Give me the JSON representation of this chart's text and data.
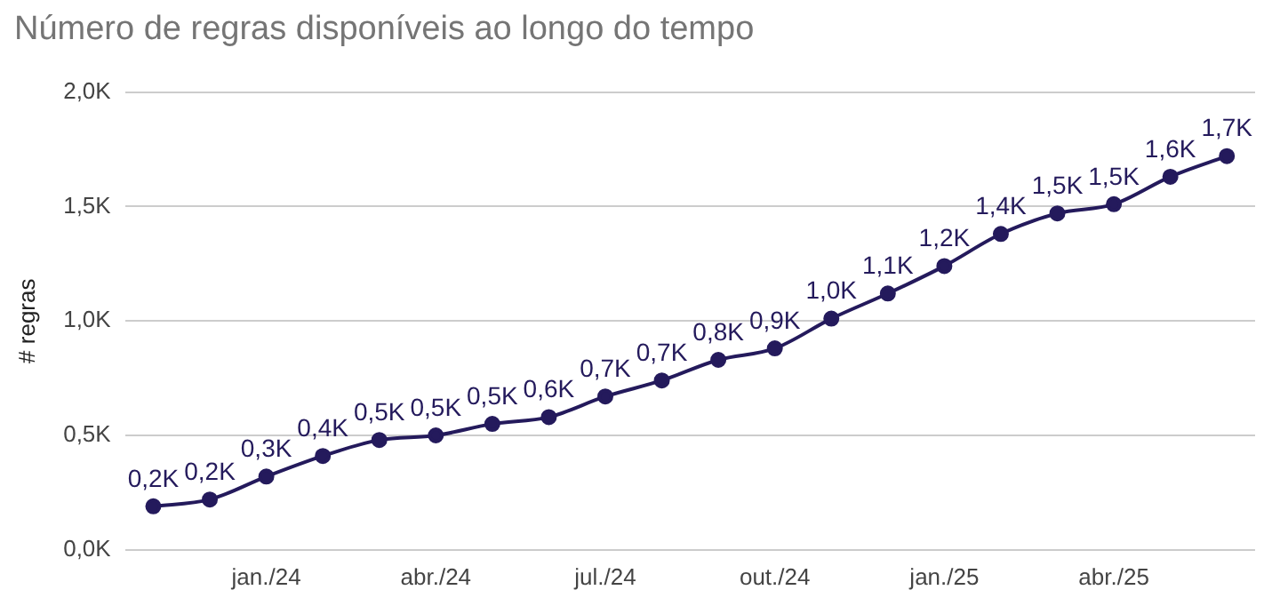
{
  "chart_data": {
    "type": "line",
    "title": "Número de regras disponíveis ao longo do tempo",
    "ylabel": "# regras",
    "categories": [
      null,
      null,
      "jan./24",
      null,
      null,
      "abr./24",
      null,
      null,
      "jul./24",
      null,
      null,
      "out./24",
      null,
      null,
      "jan./25",
      null,
      null,
      "abr./25",
      null,
      null
    ],
    "series": [
      {
        "color": "#241a5c",
        "values": [
          0.19,
          0.22,
          0.32,
          0.41,
          0.48,
          0.5,
          0.55,
          0.58,
          0.67,
          0.74,
          0.83,
          0.88,
          1.01,
          1.12,
          1.24,
          1.38,
          1.47,
          1.51,
          1.63,
          1.72
        ],
        "value_labels": [
          "0,2K",
          "0,2K",
          "0,3K",
          "0,4K",
          "0,5K",
          "0,5K",
          "0,5K",
          "0,6K",
          "0,7K",
          "0,7K",
          "0,8K",
          "0,9K",
          "1,0K",
          "1,1K",
          "1,2K",
          "1,4K",
          "1,5K",
          "1,5K",
          "1,6K",
          "1,7K"
        ]
      }
    ],
    "ylim": [
      0,
      2
    ],
    "yticks": [
      {
        "value": 0,
        "label": "0,0K"
      },
      {
        "value": 0.5,
        "label": "0,5K"
      },
      {
        "value": 1,
        "label": "1,0K"
      },
      {
        "value": 1.5,
        "label": "1,5K"
      },
      {
        "value": 2,
        "label": "2,0K"
      }
    ],
    "grid": "y",
    "legend": false,
    "marker": "circle",
    "line_style": "solid"
  }
}
